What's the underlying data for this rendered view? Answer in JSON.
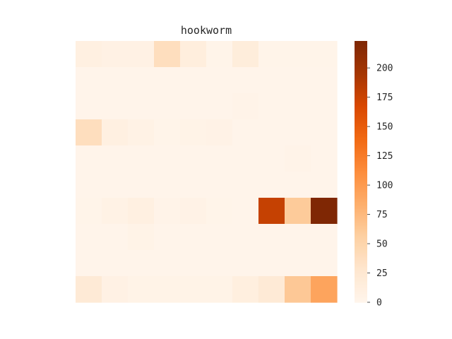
{
  "chart_data": {
    "type": "heatmap",
    "title": "hookworm",
    "xlabel": "",
    "ylabel": "",
    "colormap": "Oranges",
    "color_low": "#fff5eb",
    "color_high": "#7f2704",
    "vmin": 0,
    "vmax": 223,
    "colorbar_ticks": [
      0,
      25,
      50,
      75,
      100,
      125,
      150,
      175,
      200
    ],
    "rows": 10,
    "cols": 10,
    "values": [
      [
        10,
        7,
        7,
        38,
        13,
        2,
        15,
        2,
        2,
        2
      ],
      [
        1,
        1,
        1,
        1,
        1,
        1,
        1,
        1,
        1,
        1
      ],
      [
        1,
        1,
        1,
        1,
        1,
        1,
        3,
        1,
        1,
        1
      ],
      [
        38,
        10,
        6,
        2,
        4,
        5,
        1,
        1,
        1,
        1
      ],
      [
        1,
        1,
        1,
        1,
        1,
        1,
        1,
        1,
        3,
        1
      ],
      [
        1,
        1,
        1,
        1,
        1,
        1,
        1,
        1,
        1,
        1
      ],
      [
        2,
        6,
        10,
        3,
        5,
        2,
        1,
        178,
        60,
        223
      ],
      [
        1,
        1,
        4,
        1,
        1,
        1,
        1,
        1,
        1,
        1
      ],
      [
        1,
        1,
        1,
        1,
        1,
        1,
        1,
        1,
        1,
        1
      ],
      [
        20,
        7,
        4,
        4,
        4,
        4,
        12,
        20,
        62,
        92
      ]
    ]
  }
}
